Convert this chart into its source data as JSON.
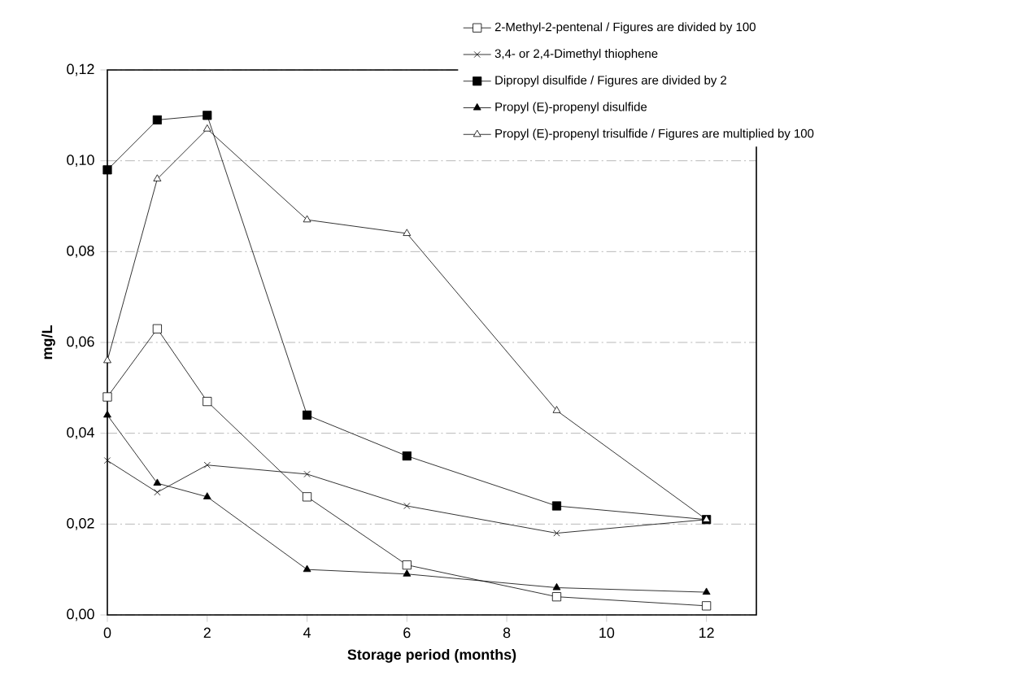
{
  "chart_data": {
    "type": "line",
    "xlabel": "Storage period (months)",
    "ylabel": "mg/L",
    "x": [
      0,
      1,
      2,
      4,
      6,
      9,
      12
    ],
    "series": [
      {
        "name": "2-Methyl-2-pentenal / Figures are divided by 100",
        "color": "#000000",
        "marker": "square",
        "colors": [
          "#ffffff",
          "#ffffff",
          "#ffffff",
          "#ffffff",
          "#ffffff",
          "#ffffff",
          "#ffffff"
        ],
        "values": [
          0.048,
          0.063,
          0.047,
          0.026,
          0.011,
          0.004,
          0.002
        ]
      },
      {
        "name": "3,4- or 2,4-Dimethyl thiophene",
        "color": "#000000",
        "marker": "cross",
        "values": [
          0.034,
          0.027,
          0.033,
          0.031,
          0.024,
          0.018,
          0.021
        ]
      },
      {
        "name": "Dipropyl disulfide / Figures are divided by 2",
        "color": "#000000",
        "marker": "square",
        "values": [
          0.098,
          0.109,
          0.11,
          0.044,
          0.035,
          0.024,
          0.021
        ]
      },
      {
        "name": "Propyl (E)-propenyl disulfide",
        "color": "#000000",
        "marker": "triangle",
        "values": [
          0.044,
          0.029,
          0.026,
          0.01,
          0.009,
          0.006,
          0.005
        ]
      },
      {
        "name": "Propyl (E)-propenyl trisulfide / Figures are multiplied by 100",
        "color": "#000000",
        "marker": "triangle",
        "colors": [
          "#ffffff",
          "#ffffff",
          "#ffffff",
          "#ffffff",
          "#ffffff",
          "#ffffff",
          "#ffffff"
        ],
        "values": [
          0.056,
          0.096,
          0.107,
          0.087,
          0.084,
          0.045,
          0.021
        ]
      }
    ],
    "xlim": [
      0,
      13
    ],
    "xticks": [
      0,
      2,
      4,
      6,
      8,
      10,
      12
    ],
    "ylim": [
      0,
      0.12
    ],
    "yticks": [
      {
        "value": 0,
        "label": "0,00"
      },
      {
        "value": 0.02,
        "label": "0,02"
      },
      {
        "value": 0.04,
        "label": "0,04"
      },
      {
        "value": 0.06,
        "label": "0,06"
      },
      {
        "value": 0.08,
        "label": "0,08"
      },
      {
        "value": 0.1,
        "label": "0,10"
      },
      {
        "value": 0.12,
        "label": "0,12"
      }
    ],
    "grid": "y",
    "legend": "top right",
    "line_style": "solid"
  }
}
